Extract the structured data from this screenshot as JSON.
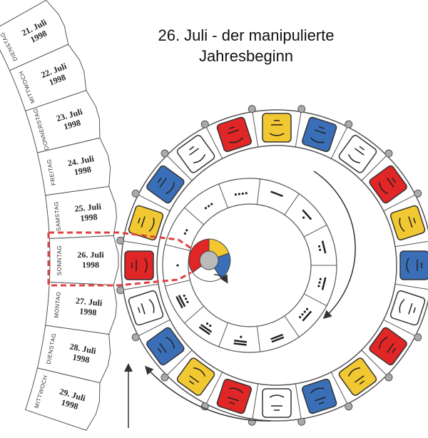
{
  "title": {
    "line1": "26. Juli - der manipulierte",
    "line2": "Jahresbeginn"
  },
  "days": [
    {
      "weekday": "DIENSTAG",
      "date": "21. Juli",
      "year": "1998"
    },
    {
      "weekday": "MITTWOCH",
      "date": "22. Juli",
      "year": "1998"
    },
    {
      "weekday": "DONNERSTAG",
      "date": "23. Juli",
      "year": "1998"
    },
    {
      "weekday": "FREITAG",
      "date": "24. Juli",
      "year": "1998"
    },
    {
      "weekday": "SAMSTAG",
      "date": "25. Juli",
      "year": "1998"
    },
    {
      "weekday": "SONNTAG",
      "date": "26. Juli",
      "year": "1998"
    },
    {
      "weekday": "MONTAG",
      "date": "27. Juli",
      "year": "1998"
    },
    {
      "weekday": "DIENSTAG",
      "date": "28. Juli",
      "year": "1998"
    },
    {
      "weekday": "MITTWOCH",
      "date": "29. Juli",
      "year": "1998"
    }
  ]
}
